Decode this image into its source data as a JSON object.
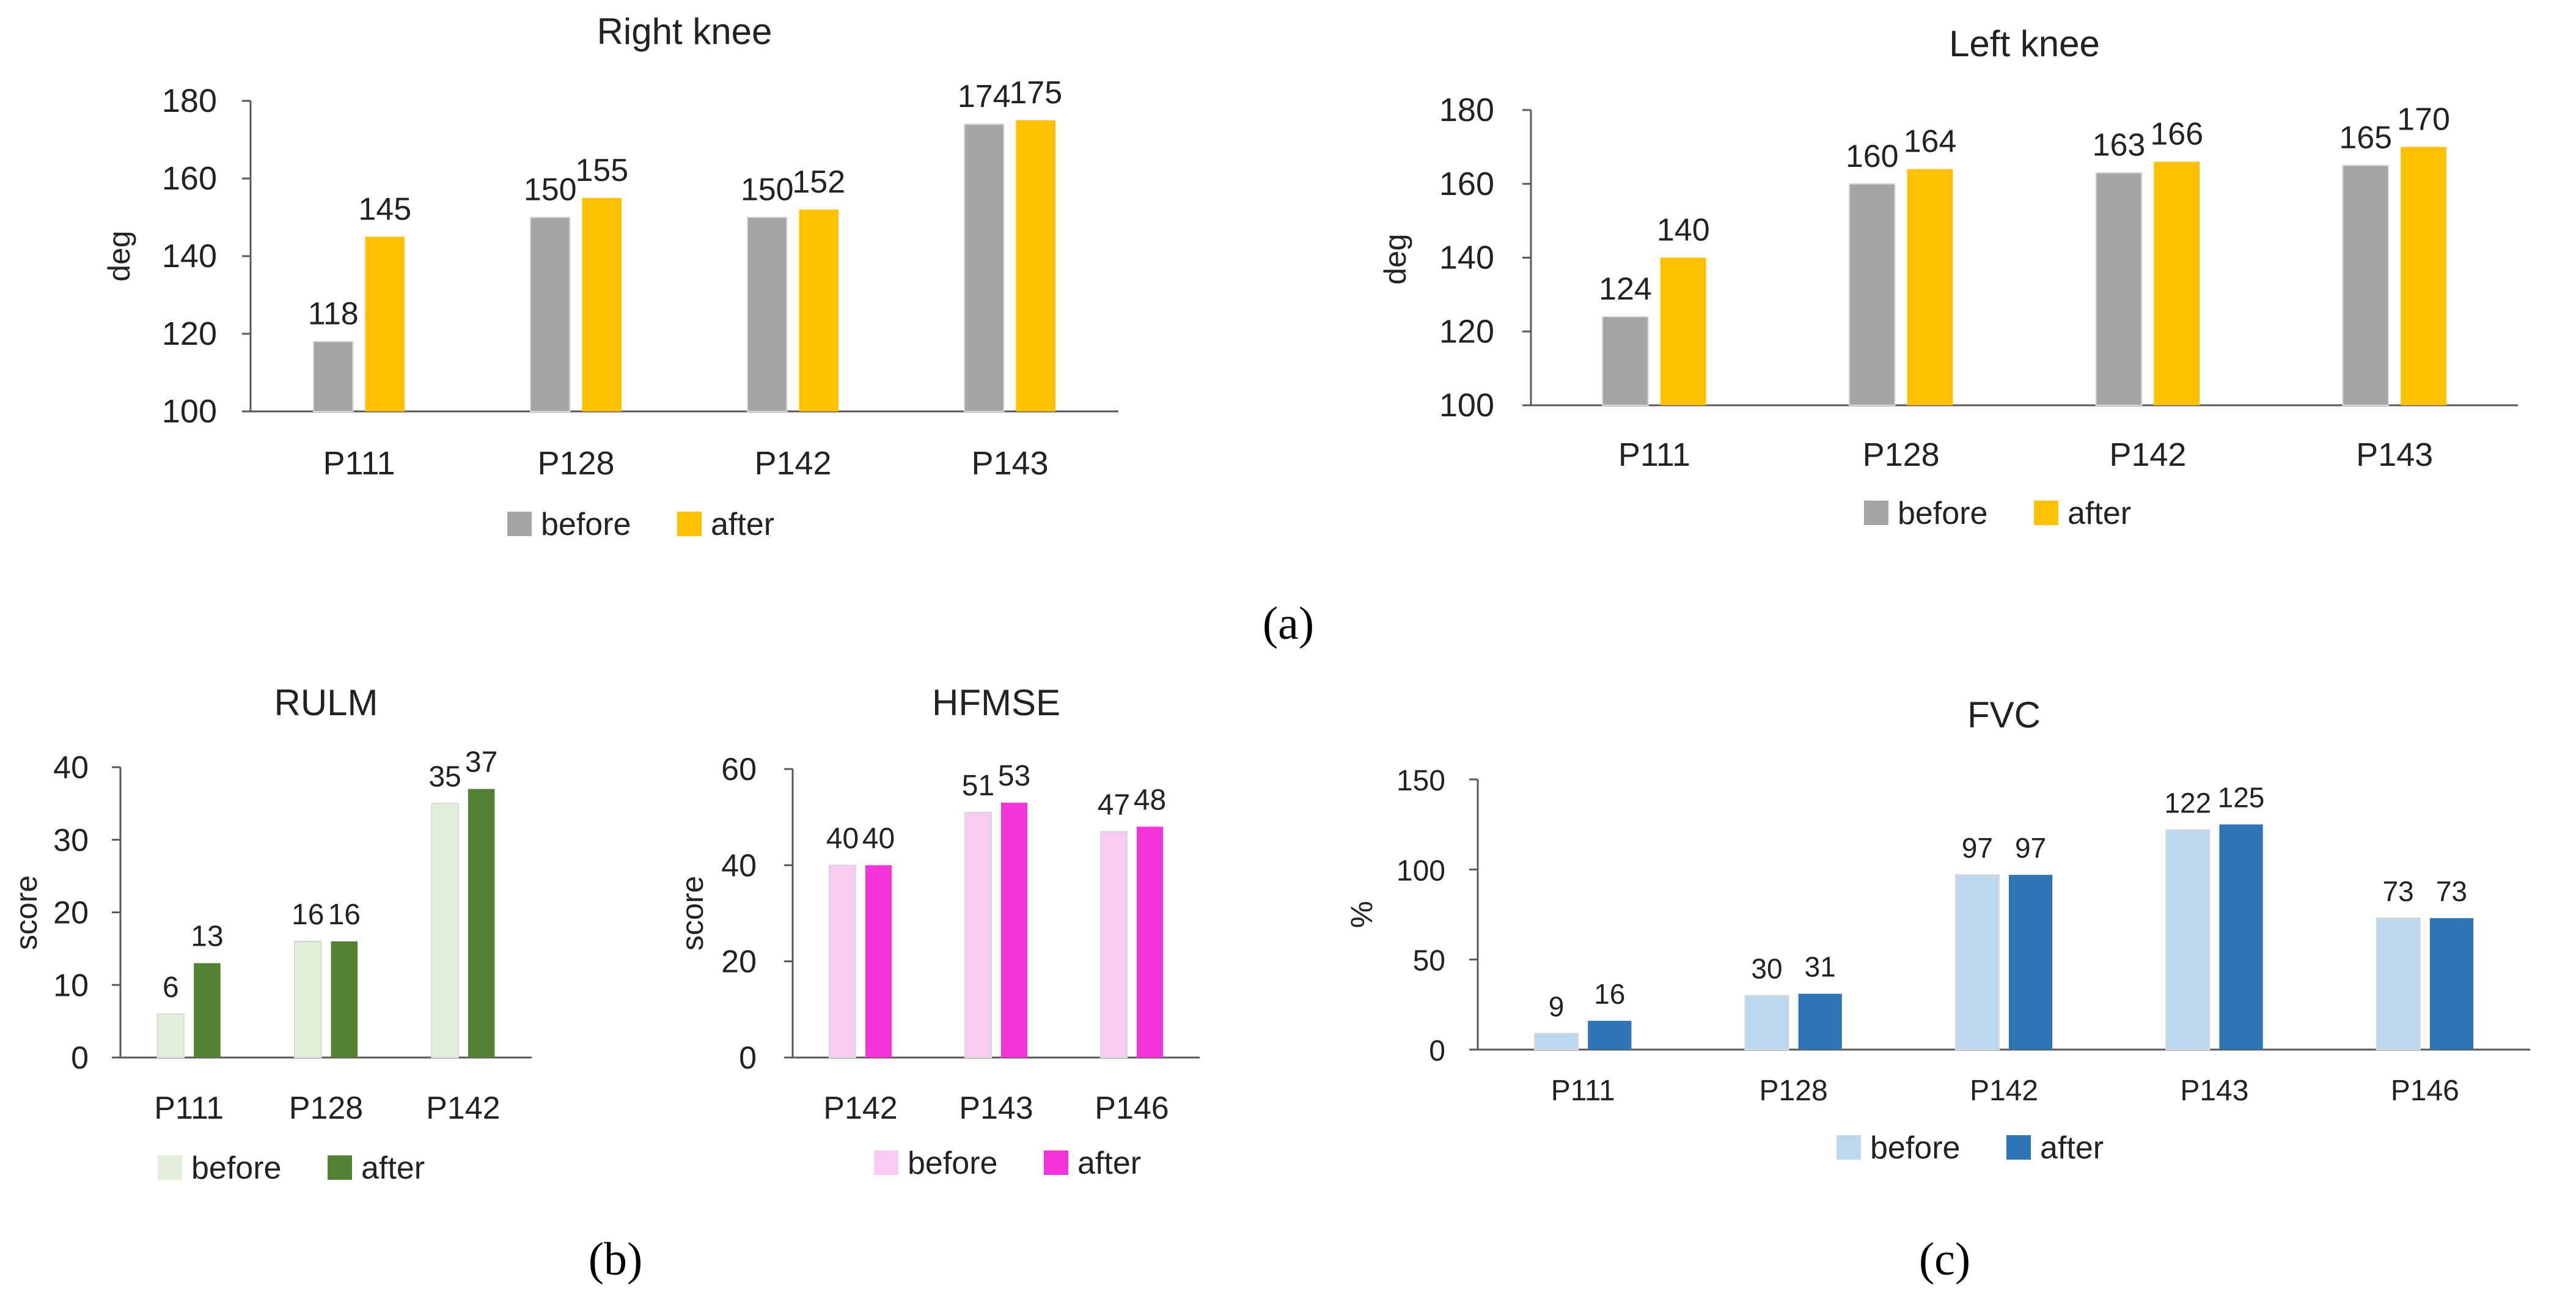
{
  "figure_labels": {
    "a": "(a)",
    "b": "(b)",
    "c": "(c)"
  },
  "chart_data": [
    {
      "id": "right-knee",
      "type": "bar",
      "title": "Right knee",
      "xlabel": "",
      "ylabel": "deg",
      "ylim": [
        100,
        180
      ],
      "yticks": [
        100,
        120,
        140,
        160,
        180
      ],
      "categories": [
        "P111",
        "P128",
        "P142",
        "P143"
      ],
      "series": [
        {
          "name": "before",
          "color": "#A5A5A5",
          "values": [
            118,
            150,
            150,
            174
          ]
        },
        {
          "name": "after",
          "color": "#FFC000",
          "values": [
            145,
            155,
            152,
            175
          ]
        }
      ],
      "legend": "bottom"
    },
    {
      "id": "left-knee",
      "type": "bar",
      "title": "Left knee",
      "xlabel": "",
      "ylabel": "deg",
      "ylim": [
        100,
        180
      ],
      "yticks": [
        100,
        120,
        140,
        160,
        180
      ],
      "categories": [
        "P111",
        "P128",
        "P142",
        "P143"
      ],
      "series": [
        {
          "name": "before",
          "color": "#A5A5A5",
          "values": [
            124,
            160,
            163,
            165
          ]
        },
        {
          "name": "after",
          "color": "#FFC000",
          "values": [
            140,
            164,
            166,
            170
          ]
        }
      ],
      "legend": "bottom"
    },
    {
      "id": "rulm",
      "type": "bar",
      "title": "RULM",
      "xlabel": "",
      "ylabel": "score",
      "ylim": [
        0,
        40
      ],
      "yticks": [
        0,
        10,
        20,
        30,
        40
      ],
      "categories": [
        "P111",
        "P128",
        "P142"
      ],
      "series": [
        {
          "name": "before",
          "color": "#E2EFDA",
          "values": [
            6,
            16,
            35
          ]
        },
        {
          "name": "after",
          "color": "#548235",
          "values": [
            13,
            16,
            37
          ]
        }
      ],
      "legend": "bottom"
    },
    {
      "id": "hfmse",
      "type": "bar",
      "title": "HFMSE",
      "xlabel": "",
      "ylabel": "score",
      "ylim": [
        0,
        60
      ],
      "yticks": [
        0,
        20,
        40,
        60
      ],
      "categories": [
        "P142",
        "P143",
        "P146"
      ],
      "series": [
        {
          "name": "before",
          "color": "#F9CBF3",
          "values": [
            40,
            51,
            47
          ]
        },
        {
          "name": "after",
          "color": "#F234D6",
          "values": [
            40,
            53,
            48
          ]
        }
      ],
      "legend": "bottom"
    },
    {
      "id": "fvc",
      "type": "bar",
      "title": "FVC",
      "xlabel": "",
      "ylabel": "%",
      "ylim": [
        0,
        150
      ],
      "yticks": [
        0,
        50,
        100,
        150
      ],
      "categories": [
        "P111",
        "P128",
        "P142",
        "P143",
        "P146"
      ],
      "series": [
        {
          "name": "before",
          "color": "#BDD7EE",
          "values": [
            9,
            30,
            97,
            122,
            73
          ]
        },
        {
          "name": "after",
          "color": "#2E75B6",
          "values": [
            16,
            31,
            97,
            125,
            73
          ]
        }
      ],
      "legend": "bottom"
    }
  ]
}
